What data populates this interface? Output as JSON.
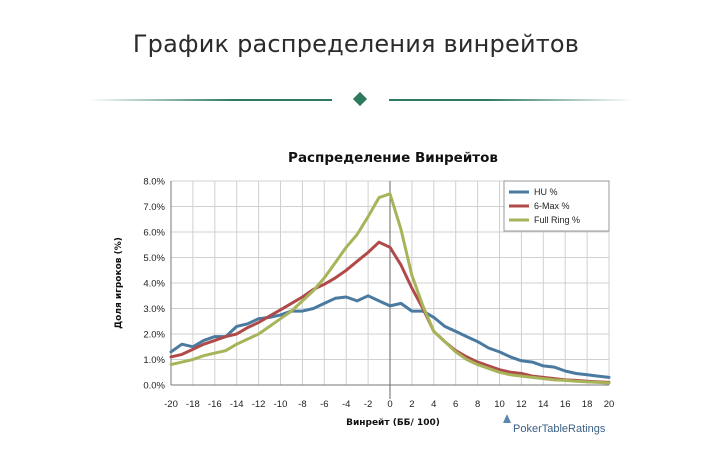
{
  "page": {
    "heading": "График распределения винрейтов",
    "accent_color": "#2d7a5d"
  },
  "chart_data": {
    "type": "line",
    "title": "Распределение  Винрейтов",
    "xlabel": "Винрейт (ББ/ 100)",
    "ylabel": "Доля игроков (%)",
    "xlim": [
      -20,
      20
    ],
    "ylim": [
      0,
      8
    ],
    "x_ticks": [
      -20,
      -18,
      -16,
      -14,
      -12,
      -10,
      -8,
      -6,
      -4,
      -2,
      0,
      2,
      4,
      6,
      8,
      10,
      12,
      14,
      16,
      18,
      20
    ],
    "y_ticks": [
      0,
      1,
      2,
      3,
      4,
      5,
      6,
      7,
      8
    ],
    "y_tick_labels": [
      "0.0%",
      "1.0%",
      "2.0%",
      "3.0%",
      "4.0%",
      "5.0%",
      "6.0%",
      "7.0%",
      "8.0%"
    ],
    "grid": true,
    "legend_position": "top-right",
    "source_logo": "PokerTableRatings",
    "x": [
      -20,
      -19,
      -18,
      -17,
      -16,
      -15,
      -14,
      -13,
      -12,
      -11,
      -10,
      -9,
      -8,
      -7,
      -6,
      -5,
      -4,
      -3,
      -2,
      -1,
      0,
      1,
      2,
      3,
      4,
      5,
      6,
      7,
      8,
      9,
      10,
      11,
      12,
      13,
      14,
      15,
      16,
      17,
      18,
      19,
      20
    ],
    "series": [
      {
        "name": "HU %",
        "color": "#4a7aa0",
        "values": [
          1.3,
          1.6,
          1.5,
          1.75,
          1.9,
          1.9,
          2.3,
          2.4,
          2.6,
          2.65,
          2.75,
          2.9,
          2.9,
          3.0,
          3.2,
          3.4,
          3.45,
          3.3,
          3.5,
          3.3,
          3.1,
          3.2,
          2.9,
          2.9,
          2.65,
          2.3,
          2.1,
          1.9,
          1.7,
          1.45,
          1.3,
          1.1,
          0.95,
          0.9,
          0.75,
          0.7,
          0.55,
          0.45,
          0.4,
          0.35,
          0.3
        ]
      },
      {
        "name": "6-Max %",
        "color": "#b04a4a",
        "values": [
          1.1,
          1.2,
          1.4,
          1.6,
          1.75,
          1.9,
          2.0,
          2.25,
          2.45,
          2.7,
          2.95,
          3.2,
          3.45,
          3.75,
          3.95,
          4.2,
          4.5,
          4.85,
          5.2,
          5.6,
          5.4,
          4.7,
          3.8,
          3.0,
          2.1,
          1.7,
          1.35,
          1.1,
          0.9,
          0.75,
          0.6,
          0.5,
          0.45,
          0.35,
          0.3,
          0.25,
          0.2,
          0.18,
          0.15,
          0.12,
          0.1
        ]
      },
      {
        "name": "Full Ring %",
        "color": "#a8b45a",
        "values": [
          0.8,
          0.9,
          1.0,
          1.15,
          1.25,
          1.35,
          1.6,
          1.8,
          2.0,
          2.3,
          2.6,
          2.9,
          3.3,
          3.7,
          4.2,
          4.8,
          5.4,
          5.9,
          6.6,
          7.35,
          7.5,
          6.1,
          4.3,
          3.1,
          2.1,
          1.7,
          1.3,
          1.0,
          0.8,
          0.65,
          0.5,
          0.4,
          0.35,
          0.3,
          0.25,
          0.2,
          0.18,
          0.15,
          0.12,
          0.1,
          0.08
        ]
      }
    ]
  }
}
